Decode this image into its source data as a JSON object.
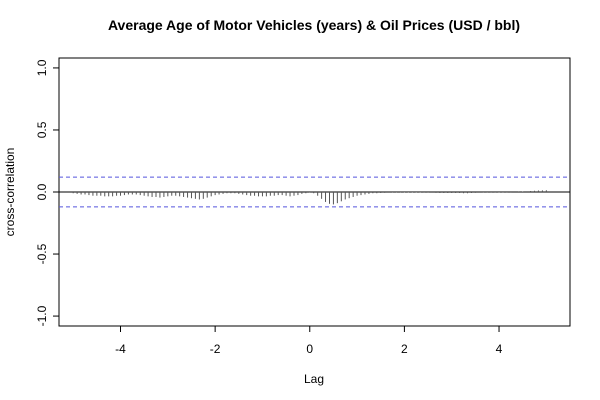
{
  "chart_data": {
    "type": "bar",
    "title": "Average Age of Motor Vehicles (years) & Oil Prices (USD / bbl)",
    "xlabel": "Lag",
    "ylabel": "cross-correlation",
    "xlim": [
      -5.3,
      5.5
    ],
    "ylim": [
      -1.08,
      1.08
    ],
    "x_ticks": [
      -4,
      -2,
      0,
      2,
      4
    ],
    "x_tick_labels": [
      "-4",
      "-2",
      "0",
      "2",
      "4"
    ],
    "y_ticks": [
      -1.0,
      -0.5,
      0.0,
      0.5,
      1.0
    ],
    "y_tick_labels": [
      "-1.0",
      "-0.5",
      "0.0",
      "0.5",
      "1.0"
    ],
    "confidence_bounds": [
      0.12,
      -0.12
    ],
    "grid": false,
    "colors": {
      "bars": "#555555",
      "confidence_line": "#5555dd",
      "zero_line": "#000000"
    },
    "x": [
      -5.0,
      -4.917,
      -4.833,
      -4.75,
      -4.667,
      -4.583,
      -4.5,
      -4.417,
      -4.333,
      -4.25,
      -4.167,
      -4.083,
      -4.0,
      -3.917,
      -3.833,
      -3.75,
      -3.667,
      -3.583,
      -3.5,
      -3.417,
      -3.333,
      -3.25,
      -3.167,
      -3.083,
      -3.0,
      -2.917,
      -2.833,
      -2.75,
      -2.667,
      -2.583,
      -2.5,
      -2.417,
      -2.333,
      -2.25,
      -2.167,
      -2.083,
      -2.0,
      -1.917,
      -1.833,
      -1.75,
      -1.667,
      -1.583,
      -1.5,
      -1.417,
      -1.333,
      -1.25,
      -1.167,
      -1.083,
      -1.0,
      -0.917,
      -0.833,
      -0.75,
      -0.667,
      -0.583,
      -0.5,
      -0.417,
      -0.333,
      -0.25,
      -0.167,
      -0.083,
      0.0,
      0.083,
      0.167,
      0.25,
      0.333,
      0.417,
      0.5,
      0.583,
      0.667,
      0.75,
      0.833,
      0.917,
      1.0,
      1.083,
      1.167,
      1.25,
      1.333,
      1.417,
      1.5,
      1.583,
      1.667,
      1.75,
      1.833,
      1.917,
      2.0,
      2.083,
      2.167,
      2.25,
      2.333,
      2.417,
      2.5,
      2.583,
      2.667,
      2.75,
      2.833,
      2.917,
      3.0,
      3.083,
      3.167,
      3.25,
      3.333,
      3.417,
      3.5,
      3.583,
      3.667,
      3.75,
      3.833,
      3.917,
      4.0,
      4.083,
      4.167,
      4.25,
      4.333,
      4.417,
      4.5,
      4.583,
      4.667,
      4.75,
      4.833,
      4.917,
      5.0
    ],
    "values": [
      -0.01,
      -0.015,
      -0.02,
      -0.02,
      -0.025,
      -0.03,
      -0.03,
      -0.03,
      -0.035,
      -0.035,
      -0.035,
      -0.03,
      -0.03,
      -0.025,
      -0.02,
      -0.02,
      -0.02,
      -0.025,
      -0.03,
      -0.035,
      -0.04,
      -0.04,
      -0.045,
      -0.04,
      -0.035,
      -0.03,
      -0.03,
      -0.035,
      -0.04,
      -0.045,
      -0.05,
      -0.055,
      -0.06,
      -0.055,
      -0.045,
      -0.035,
      -0.025,
      -0.02,
      -0.015,
      -0.01,
      -0.01,
      -0.01,
      -0.015,
      -0.02,
      -0.025,
      -0.03,
      -0.03,
      -0.035,
      -0.035,
      -0.035,
      -0.03,
      -0.03,
      -0.025,
      -0.025,
      -0.03,
      -0.035,
      -0.03,
      -0.025,
      -0.015,
      -0.01,
      -0.005,
      -0.01,
      -0.03,
      -0.055,
      -0.08,
      -0.095,
      -0.1,
      -0.09,
      -0.075,
      -0.06,
      -0.05,
      -0.04,
      -0.03,
      -0.025,
      -0.02,
      -0.015,
      -0.01,
      -0.01,
      -0.008,
      -0.007,
      -0.006,
      -0.005,
      -0.005,
      -0.005,
      -0.004,
      -0.004,
      -0.004,
      -0.004,
      -0.004,
      -0.005,
      -0.005,
      -0.006,
      -0.007,
      -0.008,
      -0.008,
      -0.008,
      -0.008,
      -0.008,
      -0.008,
      -0.01,
      -0.01,
      -0.008,
      -0.007,
      -0.006,
      -0.005,
      -0.005,
      -0.005,
      -0.005,
      -0.004,
      -0.003,
      -0.002,
      -0.001,
      0.0,
      0.002,
      0.004,
      0.006,
      0.008,
      0.01,
      0.012,
      0.013,
      0.014
    ]
  }
}
